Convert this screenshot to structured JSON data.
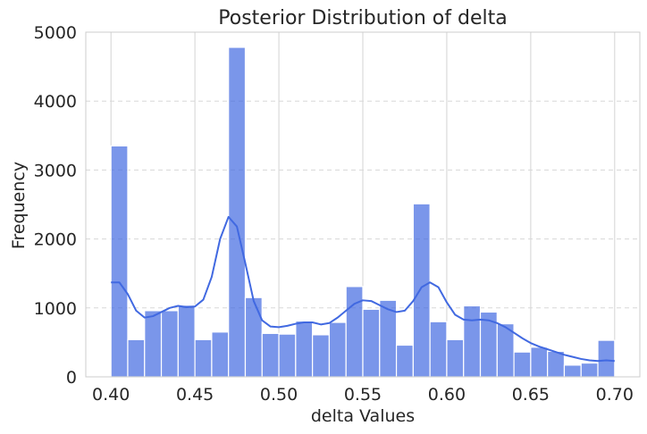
{
  "chart_data": {
    "type": "bar",
    "title": "Posterior Distribution of delta",
    "xlabel": "delta Values",
    "ylabel": "Frequency",
    "xlim": [
      0.385,
      0.715
    ],
    "ylim": [
      0,
      5000
    ],
    "x_ticks": [
      0.4,
      0.45,
      0.5,
      0.55,
      0.6,
      0.65,
      0.7
    ],
    "x_tick_labels": [
      "0.40",
      "0.45",
      "0.50",
      "0.55",
      "0.60",
      "0.65",
      "0.70"
    ],
    "y_ticks": [
      0,
      1000,
      2000,
      3000,
      4000,
      5000
    ],
    "y_tick_labels": [
      "0",
      "1000",
      "2000",
      "3000",
      "4000",
      "5000"
    ],
    "bin_start": 0.4,
    "bin_width": 0.01,
    "values": [
      3350,
      540,
      960,
      960,
      1040,
      540,
      650,
      4780,
      1150,
      630,
      620,
      810,
      610,
      790,
      1310,
      980,
      1110,
      460,
      2510,
      800,
      540,
      1030,
      940,
      770,
      360,
      430,
      370,
      170,
      200,
      530
    ],
    "kde": {
      "x": [
        0.4,
        0.405,
        0.41,
        0.415,
        0.42,
        0.425,
        0.43,
        0.435,
        0.44,
        0.445,
        0.45,
        0.455,
        0.46,
        0.465,
        0.47,
        0.475,
        0.48,
        0.485,
        0.49,
        0.495,
        0.5,
        0.505,
        0.51,
        0.515,
        0.52,
        0.525,
        0.53,
        0.535,
        0.54,
        0.545,
        0.55,
        0.555,
        0.56,
        0.565,
        0.57,
        0.575,
        0.58,
        0.585,
        0.59,
        0.595,
        0.6,
        0.605,
        0.61,
        0.615,
        0.62,
        0.625,
        0.63,
        0.635,
        0.64,
        0.645,
        0.65,
        0.655,
        0.66,
        0.665,
        0.67,
        0.675,
        0.68,
        0.685,
        0.69,
        0.695,
        0.7
      ],
      "y": [
        1370,
        1370,
        1200,
        960,
        860,
        880,
        940,
        1000,
        1030,
        1010,
        1020,
        1120,
        1450,
        2000,
        2320,
        2180,
        1650,
        1100,
        820,
        730,
        720,
        740,
        770,
        790,
        790,
        760,
        780,
        860,
        960,
        1060,
        1110,
        1100,
        1040,
        980,
        940,
        960,
        1100,
        1300,
        1370,
        1300,
        1080,
        900,
        830,
        820,
        830,
        820,
        780,
        720,
        640,
        560,
        490,
        440,
        400,
        360,
        320,
        290,
        260,
        240,
        230,
        240,
        230
      ]
    },
    "bar_color": "#4169E1",
    "bar_opacity": 0.7,
    "line_color": "#4169E1",
    "grid": true,
    "legend": "none"
  }
}
